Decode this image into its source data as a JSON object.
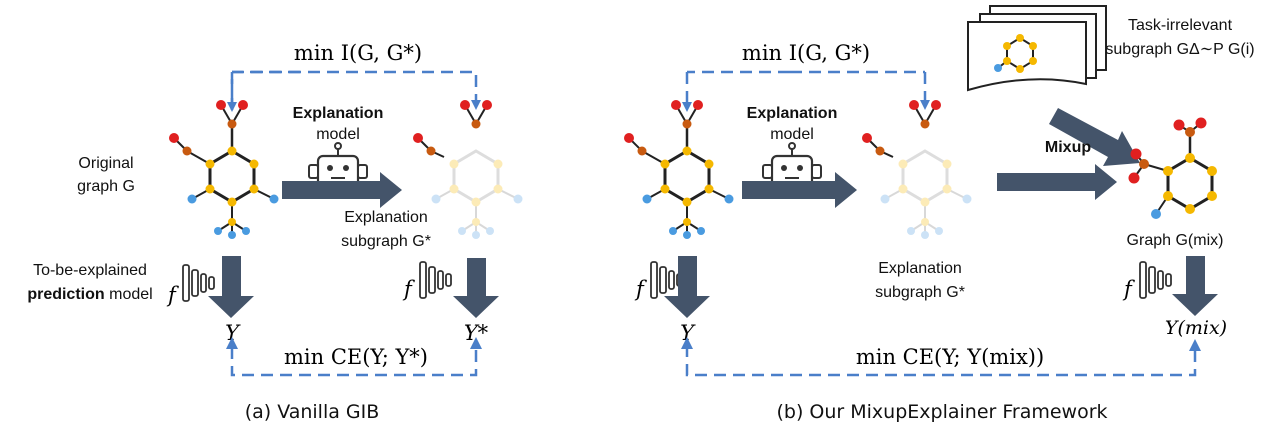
{
  "panel_a": {
    "top_objective": "min I(G, G*)",
    "bottom_objective": "min CE(Y; Y*)",
    "explanation_model": {
      "title": "Explanation",
      "sub": "model"
    },
    "original_graph": {
      "line1": "Original",
      "line2": "graph G"
    },
    "explanation_subgraph": {
      "line1": "Explanation",
      "line2": "subgraph G*"
    },
    "prediction_model": {
      "line1": "To-be-explained",
      "line2_bold": "prediction",
      "line2_rest": "model"
    },
    "f_symbol": "f",
    "y_left": "Y",
    "y_right": "Y*",
    "caption": "(a) Vanilla GIB"
  },
  "panel_b": {
    "top_objective": "min I(G, G*)",
    "bottom_objective": "min CE(Y; Y(mix))",
    "explanation_model": {
      "title": "Explanation",
      "sub": "model"
    },
    "explanation_subgraph": {
      "line1": "Explanation",
      "line2": "subgraph G*"
    },
    "task_irrelevant": {
      "line1": "Task-irrelevant",
      "line2": "subgraph GΔ∼P G(i)"
    },
    "mixup": "Mixup",
    "graph_mix": "Graph G(mix)",
    "f_symbol": "f",
    "y_left": "Y",
    "y_mix": "Y(mix)",
    "caption": "(b) Our MixupExplainer Framework"
  },
  "colors": {
    "dashed_line": "#4a7fc9",
    "block_arrow": "#44546a",
    "node_yellow": "#f5b800",
    "node_red": "#e02020",
    "node_blue": "#4a9be0",
    "node_orange": "#c85a10"
  },
  "icons": [
    "robot-icon",
    "neural-network-icon",
    "block-arrow-icon"
  ]
}
